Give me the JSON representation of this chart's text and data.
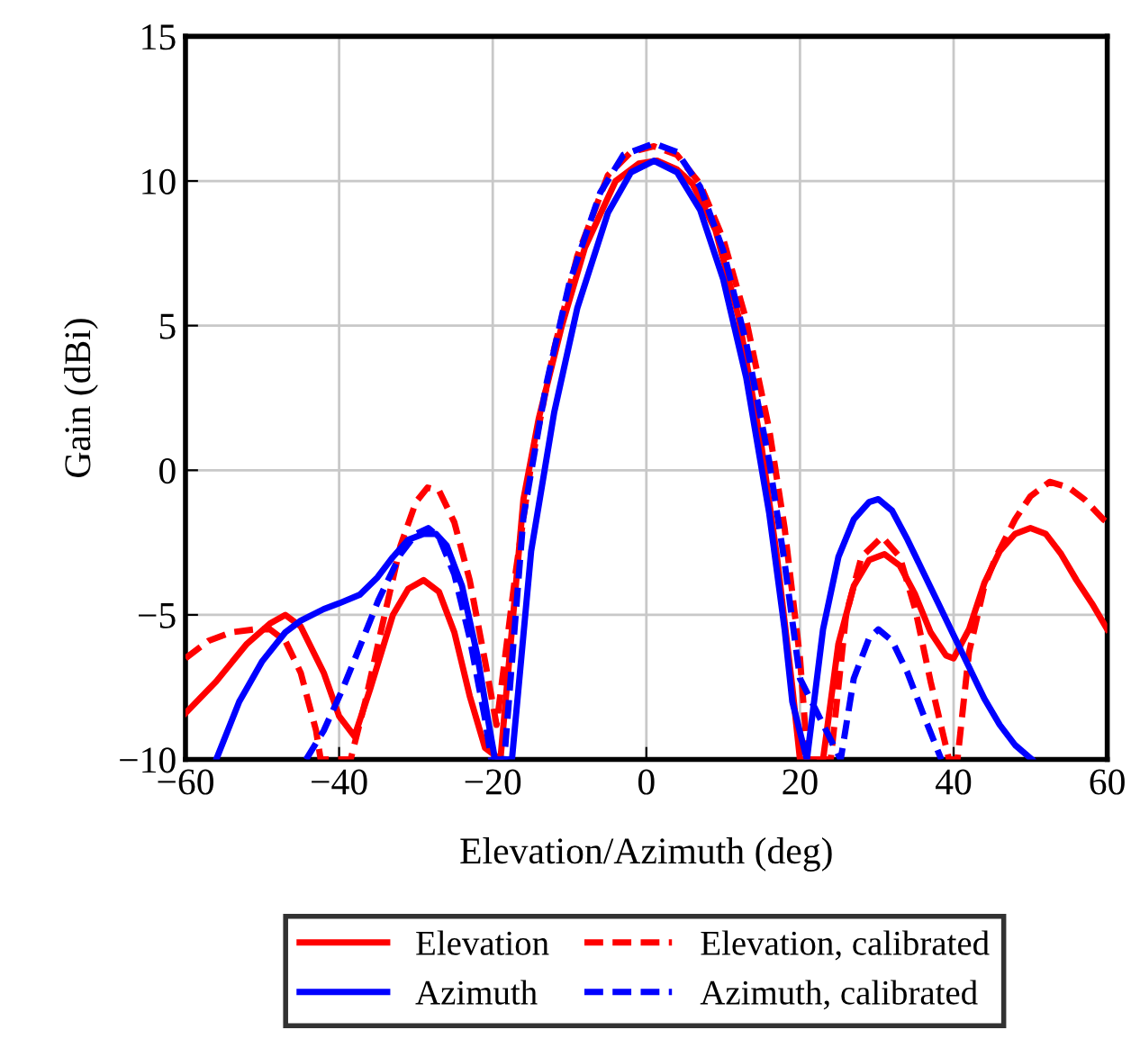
{
  "chart_data": {
    "type": "line",
    "xlabel": "Elevation/Azimuth (deg)",
    "ylabel": "Gain (dBi)",
    "xlim": [
      -60,
      60
    ],
    "ylim": [
      -10,
      15
    ],
    "xticks": [
      -60,
      -40,
      -20,
      0,
      20,
      40,
      60
    ],
    "yticks": [
      -10,
      -5,
      0,
      5,
      10,
      15
    ],
    "grid": true,
    "legend": "bottom",
    "marker": "none",
    "series": [
      {
        "name": "Elevation",
        "color": "#ff0000",
        "line_style": "solid",
        "x": [
          -60,
          -56,
          -52,
          -49,
          -47,
          -45,
          -42,
          -40,
          -38,
          -36,
          -33,
          -31,
          -29,
          -27,
          -25,
          -23,
          -21,
          -19,
          -16,
          -14,
          -11,
          -8,
          -4,
          -1,
          1.4,
          4,
          6,
          9,
          12,
          15,
          17,
          19,
          20,
          23,
          25,
          27,
          29,
          31,
          33,
          35,
          37,
          39,
          40,
          42,
          44,
          46,
          48,
          50,
          52,
          54,
          56,
          58,
          60
        ],
        "values": [
          -8.4,
          -7.3,
          -6.0,
          -5.3,
          -5.0,
          -5.4,
          -7.0,
          -8.5,
          -9.2,
          -7.6,
          -5.0,
          -4.1,
          -3.8,
          -4.2,
          -5.6,
          -7.8,
          -9.6,
          -10,
          -1,
          1.8,
          5,
          7.7,
          10,
          10.6,
          10.7,
          10.4,
          9.9,
          8.3,
          5.3,
          0.8,
          -3,
          -7.5,
          -10,
          -10,
          -6.0,
          -4.0,
          -3.1,
          -2.9,
          -3.3,
          -4.3,
          -5.6,
          -6.4,
          -6.5,
          -5.5,
          -3.9,
          -2.8,
          -2.2,
          -2.0,
          -2.2,
          -2.9,
          -3.8,
          -4.6,
          -5.5
        ]
      },
      {
        "name": "Elevation, calibrated",
        "color": "#ff0000",
        "line_style": "dashed",
        "x": [
          -60,
          -57,
          -54,
          -51,
          -49,
          -47,
          -45,
          -43,
          -42.4,
          -38.5,
          -36.6,
          -34.5,
          -32,
          -30,
          -28.5,
          -27,
          -25,
          -23,
          -21,
          -19.5,
          -17,
          -15,
          -12,
          -9,
          -5,
          -2,
          1,
          4,
          7,
          10,
          13,
          16,
          18,
          20,
          21,
          24,
          26,
          28,
          30.7,
          33,
          35,
          37,
          39.4,
          40.5,
          42,
          44,
          45.5,
          48,
          50,
          52.5,
          55,
          57,
          59.5,
          60
        ],
        "values": [
          -6.5,
          -5.9,
          -5.6,
          -5.5,
          -5.5,
          -5.9,
          -7.0,
          -9.0,
          -10,
          -10,
          -8.0,
          -5.5,
          -2.6,
          -1.1,
          -0.6,
          -0.7,
          -1.8,
          -3.8,
          -6.6,
          -8.8,
          -3.5,
          0.2,
          4.2,
          7.4,
          10.2,
          11.0,
          11.2,
          10.9,
          9.9,
          8.0,
          5.2,
          1.4,
          -2.0,
          -6.5,
          -10,
          -10,
          -5.0,
          -3.0,
          -2.3,
          -3.0,
          -4.8,
          -7.3,
          -10,
          -10,
          -6.3,
          -4.0,
          -3.0,
          -1.7,
          -0.9,
          -0.4,
          -0.6,
          -1.0,
          -1.7,
          -1.8
        ]
      },
      {
        "name": "Azimuth",
        "color": "#0000ff",
        "line_style": "solid",
        "x": [
          -56,
          -53,
          -50,
          -47,
          -45,
          -42,
          -40,
          -37.3,
          -35,
          -33,
          -31,
          -29,
          -27.4,
          -26,
          -24,
          -22,
          -20.5,
          -19.7,
          -17.5,
          -15,
          -12,
          -9,
          -5,
          -2,
          1,
          4,
          7,
          10,
          13,
          16,
          18,
          19,
          20.9,
          23,
          25,
          27,
          29,
          30.2,
          32,
          34,
          36,
          38,
          40,
          42,
          44,
          46,
          48,
          50.2
        ],
        "values": [
          -10,
          -8.0,
          -6.6,
          -5.6,
          -5.2,
          -4.8,
          -4.6,
          -4.3,
          -3.7,
          -3.0,
          -2.4,
          -2.2,
          -2.2,
          -2.6,
          -4.0,
          -6.4,
          -8.8,
          -10,
          -10,
          -2.8,
          2.0,
          5.6,
          8.9,
          10.3,
          10.7,
          10.3,
          9.0,
          6.6,
          3.2,
          -1.5,
          -5.5,
          -8.0,
          -10,
          -5.5,
          -3.0,
          -1.7,
          -1.1,
          -1.0,
          -1.4,
          -2.4,
          -3.5,
          -4.6,
          -5.7,
          -6.8,
          -7.9,
          -8.8,
          -9.5,
          -10
        ]
      },
      {
        "name": "Azimuth, calibrated",
        "color": "#0000ff",
        "line_style": "dashed",
        "x": [
          -44.3,
          -42,
          -39.6,
          -37,
          -34.9,
          -32,
          -30,
          -28.4,
          -27,
          -25,
          -23,
          -21,
          -20.2,
          -18.5,
          -16,
          -13,
          -10,
          -6,
          -3,
          1,
          4,
          7,
          10,
          13,
          16,
          18,
          20,
          25.3,
          27,
          29,
          30.2,
          32,
          34,
          36,
          38.4
        ],
        "values": [
          -10,
          -9.0,
          -7.6,
          -5.9,
          -4.5,
          -2.9,
          -2.2,
          -2.0,
          -2.3,
          -3.6,
          -5.8,
          -8.6,
          -10,
          -10,
          -1.6,
          3.0,
          6.5,
          9.6,
          10.9,
          11.3,
          11.0,
          9.8,
          7.6,
          4.4,
          0.3,
          -3.2,
          -7.2,
          -10,
          -7.2,
          -5.8,
          -5.5,
          -5.9,
          -7.0,
          -8.4,
          -10
        ]
      }
    ]
  }
}
